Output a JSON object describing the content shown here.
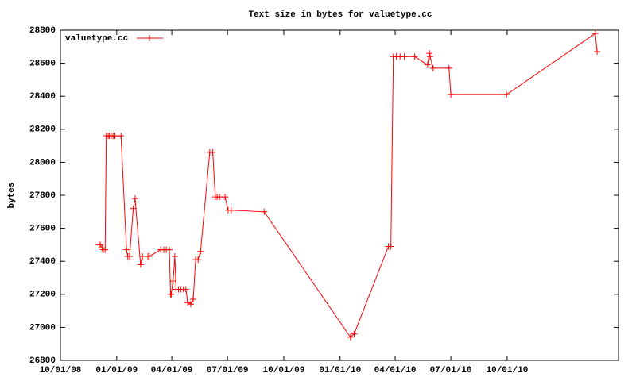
{
  "chart_data": {
    "type": "line",
    "title": "Text size in bytes for valuetype.cc",
    "ylabel": "bytes",
    "x": [
      "2008-12-03",
      "2008-12-05",
      "2008-12-08",
      "2008-12-10",
      "2008-12-13",
      "2008-12-15",
      "2008-12-18",
      "2008-12-20",
      "2008-12-23",
      "2008-12-26",
      "2008-12-29",
      "2009-01-08",
      "2009-01-17",
      "2009-01-19",
      "2009-01-22",
      "2009-01-28",
      "2009-01-31",
      "2009-02-09",
      "2009-02-12",
      "2009-02-21",
      "2009-02-23",
      "2009-03-14",
      "2009-03-19",
      "2009-03-23",
      "2009-03-28",
      "2009-03-30",
      "2009-03-31",
      "2009-04-03",
      "2009-04-06",
      "2009-04-08",
      "2009-04-12",
      "2009-04-16",
      "2009-04-20",
      "2009-04-24",
      "2009-04-27",
      "2009-05-02",
      "2009-05-06",
      "2009-05-10",
      "2009-05-14",
      "2009-05-18",
      "2009-06-02",
      "2009-06-07",
      "2009-06-11",
      "2009-06-14",
      "2009-06-18",
      "2009-06-27",
      "2009-07-02",
      "2009-07-07",
      "2009-08-30",
      "2010-01-18",
      "2010-01-24",
      "2010-03-21",
      "2010-03-25",
      "2010-03-29",
      "2010-04-03",
      "2010-04-09",
      "2010-04-16",
      "2010-05-03",
      "2010-05-24",
      "2010-05-27",
      "2010-05-28",
      "2010-06-02",
      "2010-06-28",
      "2010-07-01",
      "2010-09-30",
      "2011-02-22",
      "2011-02-25"
    ],
    "series": [
      {
        "name": "valuetype.cc",
        "color": "#ff0000",
        "values": [
          27500,
          27500,
          27480,
          27470,
          27470,
          28160,
          28160,
          28160,
          28160,
          28160,
          28160,
          28160,
          27470,
          27430,
          27430,
          27720,
          27780,
          27380,
          27430,
          27430,
          27430,
          27470,
          27470,
          27470,
          27470,
          27200,
          27200,
          27280,
          27430,
          27230,
          27230,
          27230,
          27230,
          27230,
          27150,
          27140,
          27170,
          27410,
          27410,
          27460,
          28060,
          28060,
          27790,
          27790,
          27790,
          27790,
          27710,
          27710,
          27700,
          26940,
          26960,
          27490,
          27490,
          28640,
          28640,
          28640,
          28640,
          28640,
          28590,
          28660,
          28640,
          28570,
          28570,
          28410,
          28410,
          28780,
          28670
        ]
      }
    ],
    "xlim": [
      "2008-10-01",
      "2011-04-01"
    ],
    "xticks": [
      {
        "value": "2008-10-01",
        "label": "10/01/08"
      },
      {
        "value": "2009-01-01",
        "label": "01/01/09"
      },
      {
        "value": "2009-04-01",
        "label": "04/01/09"
      },
      {
        "value": "2009-07-01",
        "label": "07/01/09"
      },
      {
        "value": "2009-10-01",
        "label": "10/01/09"
      },
      {
        "value": "2010-01-01",
        "label": "01/01/10"
      },
      {
        "value": "2010-04-01",
        "label": "04/01/10"
      },
      {
        "value": "2010-07-01",
        "label": "07/01/10"
      },
      {
        "value": "2010-10-01",
        "label": "10/01/10"
      }
    ],
    "ylim": [
      26800,
      28800
    ],
    "yticks": [
      26800,
      27000,
      27200,
      27400,
      27600,
      27800,
      28000,
      28200,
      28400,
      28600,
      28800
    ],
    "legend": "top-left"
  }
}
